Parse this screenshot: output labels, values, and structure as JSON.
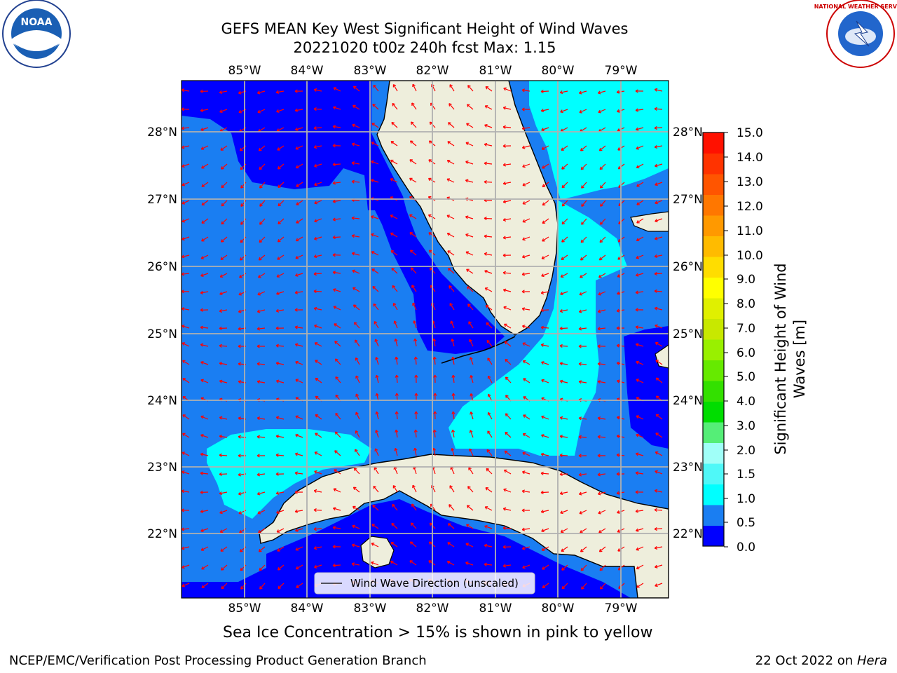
{
  "title": {
    "line1": "GEFS MEAN Key West Significant Height of Wind Waves",
    "line2": "20221020 t00z 240h fcst   Max: 1.15"
  },
  "logos": {
    "left": "NOAA",
    "right": "NATIONAL WEATHER SERVICE"
  },
  "map": {
    "lon_labels": [
      "85°W",
      "84°W",
      "83°W",
      "82°W",
      "81°W",
      "80°W",
      "79°W"
    ],
    "lat_labels": [
      "28°N",
      "27°N",
      "26°N",
      "25°N",
      "24°N",
      "23°N",
      "22°N"
    ],
    "legend": "Wind Wave Direction (unscaled)",
    "colors": {
      "band_0_0_5": "#0000ff",
      "band_0_5_1_0": "#1a7ef2",
      "band_1_0_1_5": "#00ffff",
      "land": "#eeeedc",
      "arrows": "#ff0000",
      "grid": "#b0b0b0"
    }
  },
  "colorbar": {
    "label": "Significant Height of Wind Waves [m]",
    "ticks": [
      "15.0",
      "14.0",
      "13.0",
      "12.0",
      "11.0",
      "10.0",
      "9.0",
      "8.0",
      "7.0",
      "6.0",
      "5.0",
      "4.0",
      "3.0",
      "2.0",
      "1.5",
      "1.0",
      "0.5",
      "0.0"
    ],
    "colors": [
      "#0000ff",
      "#1a7ef2",
      "#00ffff",
      "#4ff8f8",
      "#a0fff8",
      "#55ee77",
      "#00dd00",
      "#33e000",
      "#66ea00",
      "#99f000",
      "#c8e800",
      "#e0f000",
      "#ffff00",
      "#ffdd00",
      "#ffbb00",
      "#ff9900",
      "#ff7700",
      "#ff5500",
      "#ff3300",
      "#ff1100"
    ]
  },
  "note": "Sea Ice Concentration > 15% is shown in pink to yellow",
  "footer": {
    "left": "NCEP/EMC/Verification Post Processing Product Generation Branch",
    "date": "22 Oct 2022 on",
    "host": "Hera"
  }
}
